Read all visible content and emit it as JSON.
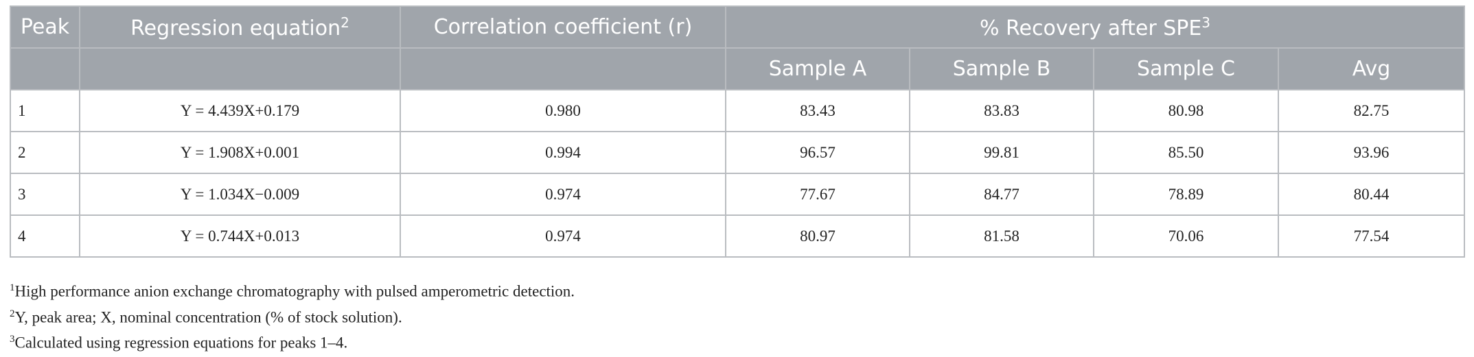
{
  "table": {
    "header": {
      "columns": [
        {
          "text": "Peak"
        },
        {
          "text": "Regression equation",
          "sup": "2"
        },
        {
          "text": "Correlation coefficient (r)"
        },
        {
          "text": "% Recovery after SPE",
          "sup": "3"
        }
      ],
      "subcolumns": [
        "Sample A",
        "Sample B",
        "Sample C",
        "Avg"
      ]
    },
    "rows": [
      [
        "1",
        "Y = 4.439X+0.179",
        "0.980",
        "83.43",
        "83.83",
        "80.98",
        "82.75"
      ],
      [
        "2",
        "Y = 1.908X+0.001",
        "0.994",
        "96.57",
        "99.81",
        "85.50",
        "93.96"
      ],
      [
        "3",
        "Y = 1.034X−0.009",
        "0.974",
        "77.67",
        "84.77",
        "78.89",
        "80.44"
      ],
      [
        "4",
        "Y = 0.744X+0.013",
        "0.974",
        "80.97",
        "81.58",
        "70.06",
        "77.54"
      ]
    ]
  },
  "footnotes": [
    {
      "sup": "1",
      "text": "High performance anion exchange chromatography with pulsed amperometric detection."
    },
    {
      "sup": "2",
      "text": "Y, peak area; X, nominal concentration (% of stock solution)."
    },
    {
      "sup": "3",
      "text": "Calculated using regression equations for peaks 1–4."
    }
  ]
}
